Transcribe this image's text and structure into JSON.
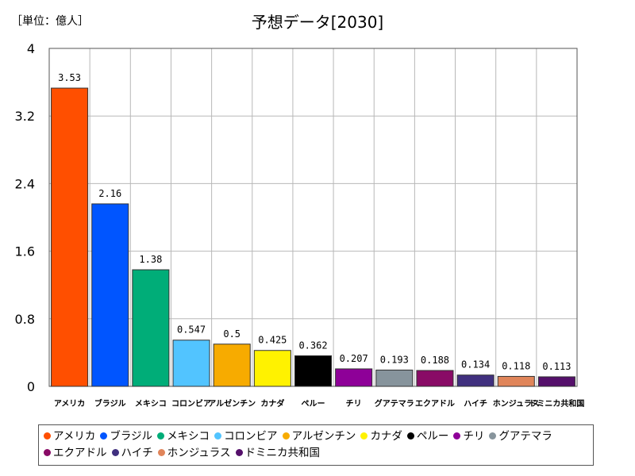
{
  "unit_label": "［単位：億人］",
  "chart_data": {
    "type": "bar",
    "title": "予想データ[2030]",
    "ylim": [
      0,
      4
    ],
    "yticks": [
      "0",
      "0.8",
      "1.6",
      "2.4",
      "3.2",
      "4"
    ],
    "grid": true,
    "legend_position": "bottom",
    "categories": [
      "アメリカ",
      "ブラジル",
      "メキシコ",
      "コロンビア",
      "アルゼンチン",
      "カナダ",
      "ペルー",
      "チリ",
      "グアテマラ",
      "エクアドル",
      "ハイチ",
      "ホンジュラス",
      "ドミニカ共和国"
    ],
    "values": [
      3.53,
      2.16,
      1.38,
      0.547,
      0.5,
      0.425,
      0.362,
      0.207,
      0.193,
      0.188,
      0.134,
      0.118,
      0.113
    ],
    "value_labels": [
      "3.53",
      "2.16",
      "1.38",
      "0.547",
      "0.5",
      "0.425",
      "0.362",
      "0.207",
      "0.193",
      "0.188",
      "0.134",
      "0.118",
      "0.113"
    ],
    "colors": [
      "#ff4f00",
      "#0055ff",
      "#00ad78",
      "#52c4ff",
      "#f7ab00",
      "#fff200",
      "#000000",
      "#8e0098",
      "#87949c",
      "#890b66",
      "#40307f",
      "#e0855a",
      "#55106b"
    ]
  }
}
